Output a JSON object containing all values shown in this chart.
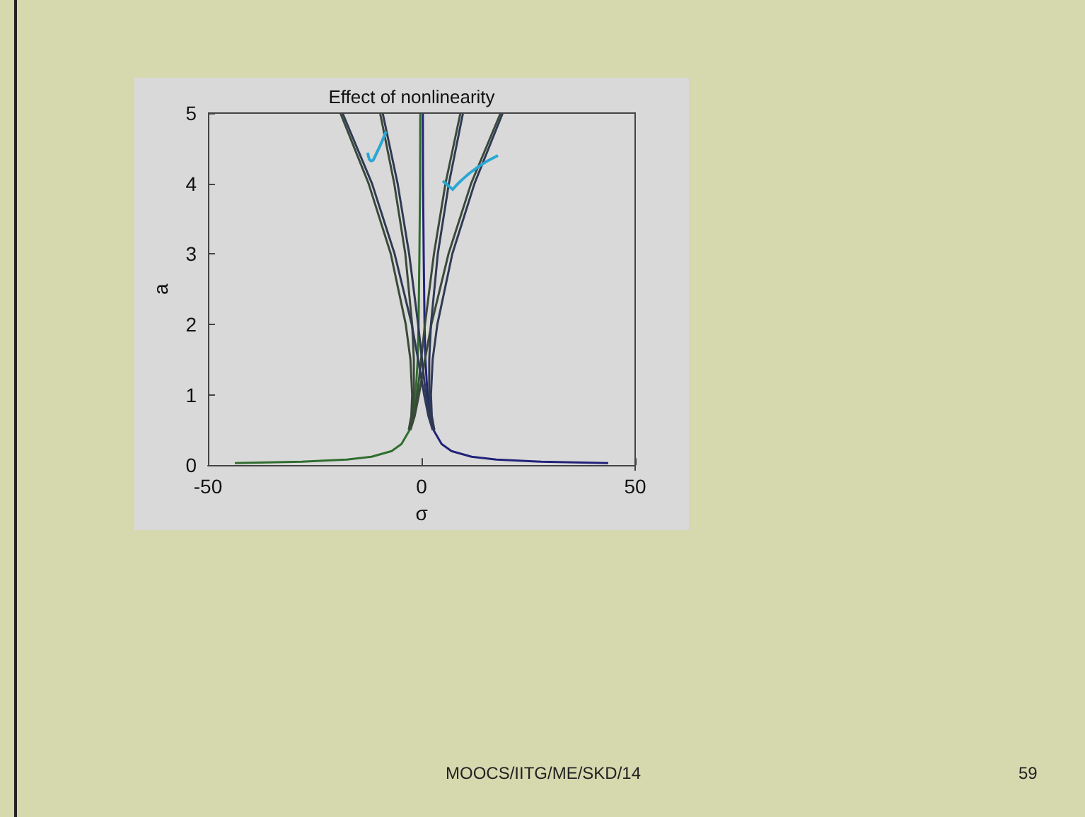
{
  "chart_data": {
    "type": "line",
    "title": "Effect of nonlinearity",
    "xlabel": "σ",
    "ylabel": "a",
    "xlim": [
      -50,
      50
    ],
    "xticks": [
      -50,
      0,
      50
    ],
    "ylim": [
      0,
      5
    ],
    "yticks": [
      0,
      1,
      2,
      3,
      4,
      5
    ],
    "grid": false,
    "marker": "none",
    "line_style": "solid",
    "annotations": [
      "MOOCS/IITG/ME/SKD/14",
      "59"
    ],
    "series": [
      {
        "color": "#2f6e2f",
        "x": [
          -43.7,
          -28.0,
          -17.5,
          -11.7,
          -7.0,
          -4.7,
          -2.8,
          -2.0,
          -1.4,
          -0.9,
          -0.7,
          -0.5,
          -0.35,
          -0.3
        ],
        "values": [
          0.03,
          0.05,
          0.08,
          0.12,
          0.2,
          0.3,
          0.5,
          0.7,
          1,
          1.5,
          2,
          3,
          4,
          5
        ]
      },
      {
        "color": "#22227a",
        "x": [
          43.7,
          28.0,
          17.5,
          11.7,
          7.0,
          4.7,
          2.8,
          2.0,
          1.4,
          0.9,
          0.7,
          0.5,
          0.35,
          0.3
        ],
        "values": [
          0.03,
          0.05,
          0.08,
          0.12,
          0.2,
          0.3,
          0.5,
          0.7,
          1,
          1.5,
          2,
          3,
          4,
          5
        ]
      },
      {
        "color": "#3a4a3a",
        "x": [
          -2.6,
          -1.6,
          -0.6,
          0.8,
          2.3,
          6.3,
          11.6,
          18.5
        ],
        "values": [
          0.5,
          0.7,
          1,
          1.5,
          2,
          3,
          4,
          5
        ]
      },
      {
        "color": "#2f3a55",
        "x": [
          3.0,
          2.4,
          2.2,
          2.6,
          3.7,
          7.2,
          12.4,
          19.0
        ],
        "values": [
          0.5,
          0.7,
          1,
          1.5,
          2,
          3,
          4,
          5
        ]
      },
      {
        "color": "#3a4a3a",
        "x": [
          -2.7,
          -1.8,
          -1.0,
          -0.1,
          0.8,
          2.9,
          5.6,
          9.1
        ],
        "values": [
          0.5,
          0.7,
          1,
          1.5,
          2,
          3,
          4,
          5
        ]
      },
      {
        "color": "#2f3a55",
        "x": [
          2.9,
          2.2,
          1.8,
          1.8,
          2.2,
          3.8,
          6.4,
          9.7
        ],
        "values": [
          0.5,
          0.7,
          1,
          1.5,
          2,
          3,
          4,
          5
        ]
      },
      {
        "color": "#3a4a3a",
        "x": [
          -2.9,
          -2.2,
          -1.8,
          -1.8,
          -2.2,
          -3.8,
          -6.4,
          -9.7
        ],
        "values": [
          0.5,
          0.7,
          1,
          1.5,
          2,
          3,
          4,
          5
        ]
      },
      {
        "color": "#2f3a55",
        "x": [
          2.7,
          1.8,
          1.0,
          0.1,
          -0.8,
          -2.9,
          -5.6,
          -9.1
        ],
        "values": [
          0.5,
          0.7,
          1,
          1.5,
          2,
          3,
          4,
          5
        ]
      },
      {
        "color": "#3a4a3a",
        "x": [
          -3.0,
          -2.4,
          -2.2,
          -2.6,
          -3.7,
          -7.2,
          -12.4,
          -19.0
        ],
        "values": [
          0.5,
          0.7,
          1,
          1.5,
          2,
          3,
          4,
          5
        ]
      },
      {
        "color": "#2f3a55",
        "x": [
          2.6,
          1.6,
          0.6,
          -0.8,
          -2.3,
          -6.3,
          -11.6,
          -18.5
        ],
        "values": [
          0.5,
          0.7,
          1,
          1.5,
          2,
          3,
          4,
          5
        ]
      }
    ]
  }
}
